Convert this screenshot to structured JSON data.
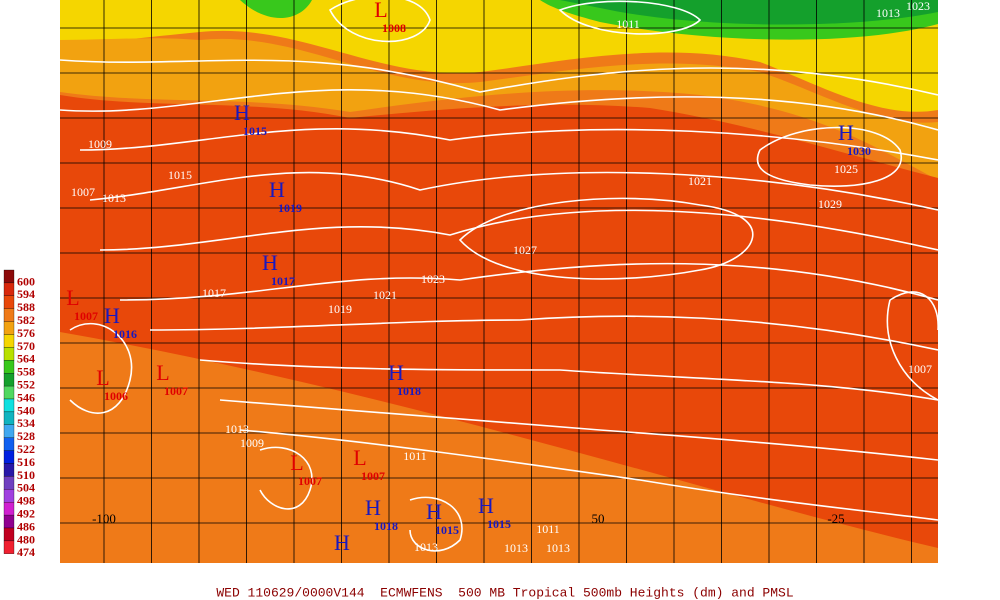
{
  "legend": [
    {
      "label": 600,
      "color": "#8c0a0a"
    },
    {
      "label": 594,
      "color": "#d8280c"
    },
    {
      "label": 588,
      "color": "#e8480a"
    },
    {
      "label": 582,
      "color": "#ef7a18"
    },
    {
      "label": 576,
      "color": "#f2a210"
    },
    {
      "label": 570,
      "color": "#f5d600"
    },
    {
      "label": 564,
      "color": "#b8e000"
    },
    {
      "label": 558,
      "color": "#38c81c"
    },
    {
      "label": 552,
      "color": "#14a02c"
    },
    {
      "label": 546,
      "color": "#50d860"
    },
    {
      "label": 540,
      "color": "#10e0e0"
    },
    {
      "label": 534,
      "color": "#10b4c0"
    },
    {
      "label": 528,
      "color": "#40a8f0"
    },
    {
      "label": 522,
      "color": "#1060f0"
    },
    {
      "label": 516,
      "color": "#0020e0"
    },
    {
      "label": 510,
      "color": "#2818a8"
    },
    {
      "label": 504,
      "color": "#7040c0"
    },
    {
      "label": 498,
      "color": "#a040e0"
    },
    {
      "label": 492,
      "color": "#d020d0"
    },
    {
      "label": 486,
      "color": "#900090"
    },
    {
      "label": 480,
      "color": "#c00020"
    },
    {
      "label": 474,
      "color": "#f02030"
    }
  ],
  "footer": "WED 110629/0000V144  ECMWFENS  500 MB Tropical 500mb Heights (dm) and PMSL",
  "longitude_labels": [
    "-100",
    "50",
    "-25"
  ],
  "centers": [
    {
      "letter": "H",
      "pressure": 1015
    },
    {
      "letter": "H",
      "pressure": 1019
    },
    {
      "letter": "H",
      "pressure": 1017
    },
    {
      "letter": "H",
      "pressure": 1030
    },
    {
      "letter": "H",
      "pressure": 1018
    },
    {
      "letter": "H",
      "pressure": 1016
    },
    {
      "letter": "L",
      "pressure": 1006
    },
    {
      "letter": "L",
      "pressure": 1007
    },
    {
      "letter": "L",
      "pressure": 1008
    },
    {
      "letter": "L",
      "pressure": 1007
    },
    {
      "letter": "L",
      "pressure": 1007
    },
    {
      "letter": "H",
      "pressure": 1018
    },
    {
      "letter": "H",
      "pressure": 1015
    },
    {
      "letter": "H",
      "pressure": 1015
    },
    {
      "letter": "L",
      "pressure": 1007
    },
    {
      "letter": "H"
    }
  ],
  "isobar_labels": [
    1011,
    1023,
    1021,
    1025,
    1029,
    1027,
    1023,
    1021,
    1019,
    1017,
    1015,
    1013,
    1009,
    1007,
    1007,
    1013,
    1011,
    1009,
    1011,
    1013,
    1013,
    1013,
    1013
  ]
}
